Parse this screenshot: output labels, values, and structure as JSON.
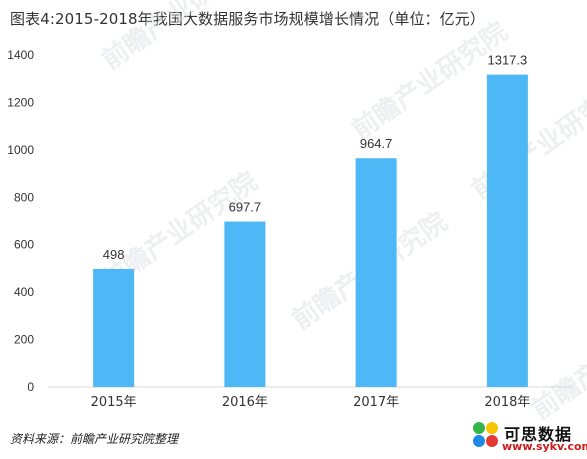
{
  "title": "图表4:2015-2018年我国大数据服务市场规模增长情况（单位：亿元）",
  "source": "资料来源：前瞻产业研究院整理",
  "watermark_text": "前瞻产业研究院",
  "logo": {
    "name": "可思数据",
    "url": "www.sykv.com"
  },
  "colors": {
    "bar": "#4DB8F5",
    "axis": "#D9D9D9",
    "text": "#333333"
  },
  "chart_data": {
    "type": "bar",
    "title": "图表4:2015-2018年我国大数据服务市场规模增长情况（单位：亿元）",
    "categories": [
      "2015年",
      "2016年",
      "2017年",
      "2018年"
    ],
    "values": [
      498,
      697.7,
      964.7,
      1317.3
    ],
    "data_labels": [
      "498",
      "697.7",
      "964.7",
      "1317.3"
    ],
    "yticks": [
      "0",
      "200",
      "400",
      "600",
      "800",
      "1000",
      "1200",
      "1400"
    ],
    "ylim": [
      0,
      1400
    ],
    "grid": false,
    "legend": false,
    "xlabel": "",
    "ylabel": ""
  }
}
